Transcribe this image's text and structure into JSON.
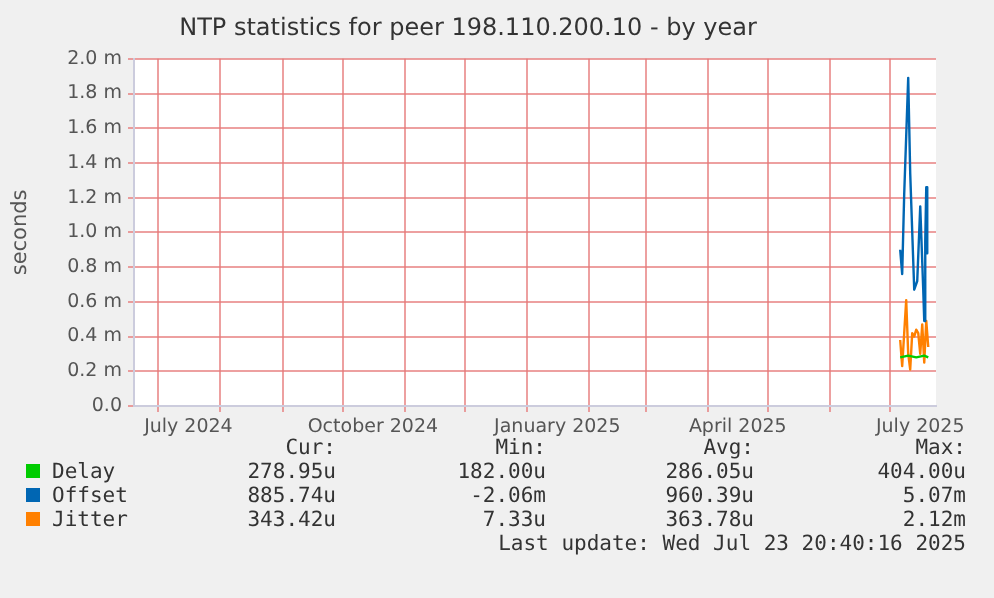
{
  "chart_data": {
    "type": "line",
    "title": "NTP statistics for peer 198.110.200.10 - by year",
    "ylabel": "seconds",
    "xlim": [
      "2024-06-18T20:40",
      "2025-07-23T20:40"
    ],
    "xticks": [
      {
        "value": "2024-07-01",
        "label": null
      },
      {
        "value": "2024-07-16",
        "label": "July 2024"
      },
      {
        "value": "2024-08-01",
        "label": null
      },
      {
        "value": "2024-09-01",
        "label": null
      },
      {
        "value": "2024-10-01",
        "label": null
      },
      {
        "value": "2024-10-16",
        "label": "October 2024"
      },
      {
        "value": "2024-11-01",
        "label": null
      },
      {
        "value": "2024-12-01",
        "label": null
      },
      {
        "value": "2025-01-01",
        "label": null
      },
      {
        "value": "2025-01-16",
        "label": "January 2025"
      },
      {
        "value": "2025-02-01",
        "label": null
      },
      {
        "value": "2025-03-01",
        "label": null
      },
      {
        "value": "2025-04-01",
        "label": null
      },
      {
        "value": "2025-04-16",
        "label": "April 2025"
      },
      {
        "value": "2025-05-01",
        "label": null
      },
      {
        "value": "2025-06-01",
        "label": null
      },
      {
        "value": "2025-07-01",
        "label": null
      },
      {
        "value": "2025-07-16",
        "label": "July 2025"
      }
    ],
    "ylim": [
      0,
      2.0
    ],
    "yticks": [
      {
        "value": 0,
        "label": "0.0"
      },
      {
        "value": 0.2,
        "label": "0.2 m"
      },
      {
        "value": 0.4,
        "label": "0.4 m"
      },
      {
        "value": 0.6,
        "label": "0.6 m"
      },
      {
        "value": 0.8,
        "label": "0.8 m"
      },
      {
        "value": 1.0,
        "label": "1.0 m"
      },
      {
        "value": 1.2,
        "label": "1.2 m"
      },
      {
        "value": 1.4,
        "label": "1.4 m"
      },
      {
        "value": 1.6,
        "label": "1.6 m"
      },
      {
        "value": 1.8,
        "label": "1.8 m"
      },
      {
        "value": 2.0,
        "label": "2.0 m"
      }
    ],
    "grid": true,
    "legend": "bottom",
    "marker": "none",
    "line_style": "solid",
    "series": [
      {
        "name": "Delay",
        "color": "#00cc00",
        "x": [
          "2025-07-06",
          "2025-07-10",
          "2025-07-14",
          "2025-07-18",
          "2025-07-20"
        ],
        "values": [
          0.28,
          0.29,
          0.28,
          0.29,
          0.28
        ]
      },
      {
        "name": "Offset",
        "color": "#0066b3",
        "x": [
          "2025-07-06",
          "2025-07-07",
          "2025-07-08",
          "2025-07-10",
          "2025-07-11",
          "2025-07-13",
          "2025-07-14T12:00",
          "2025-07-16",
          "2025-07-17T12:00",
          "2025-07-18",
          "2025-07-18T12:00",
          "2025-07-19",
          "2025-07-19T12:00"
        ],
        "values": [
          0.9,
          0.76,
          1.22,
          1.89,
          1.34,
          0.67,
          0.72,
          1.15,
          0.67,
          0.49,
          0.95,
          1.26,
          0.88
        ]
      },
      {
        "name": "Jitter",
        "color": "#ff8000",
        "x": [
          "2025-07-06",
          "2025-07-07",
          "2025-07-08",
          "2025-07-09",
          "2025-07-10",
          "2025-07-11",
          "2025-07-12",
          "2025-07-13",
          "2025-07-14",
          "2025-07-15",
          "2025-07-16",
          "2025-07-17",
          "2025-07-18",
          "2025-07-19",
          "2025-07-20"
        ],
        "values": [
          0.38,
          0.23,
          0.42,
          0.61,
          0.3,
          0.21,
          0.42,
          0.4,
          0.44,
          0.42,
          0.3,
          0.47,
          0.25,
          0.49,
          0.34
        ]
      }
    ],
    "annotations": [
      "Cur:",
      "Min:",
      "Avg:",
      "Max:",
      "278.95u",
      "182.00u",
      "286.05u",
      "404.00u",
      "885.74u",
      "-2.06m",
      "960.39u",
      "5.07m",
      "343.42u",
      "7.33u",
      "363.78u",
      "2.12m",
      "Last update: Wed Jul 23 20:40:16 2025"
    ]
  }
}
